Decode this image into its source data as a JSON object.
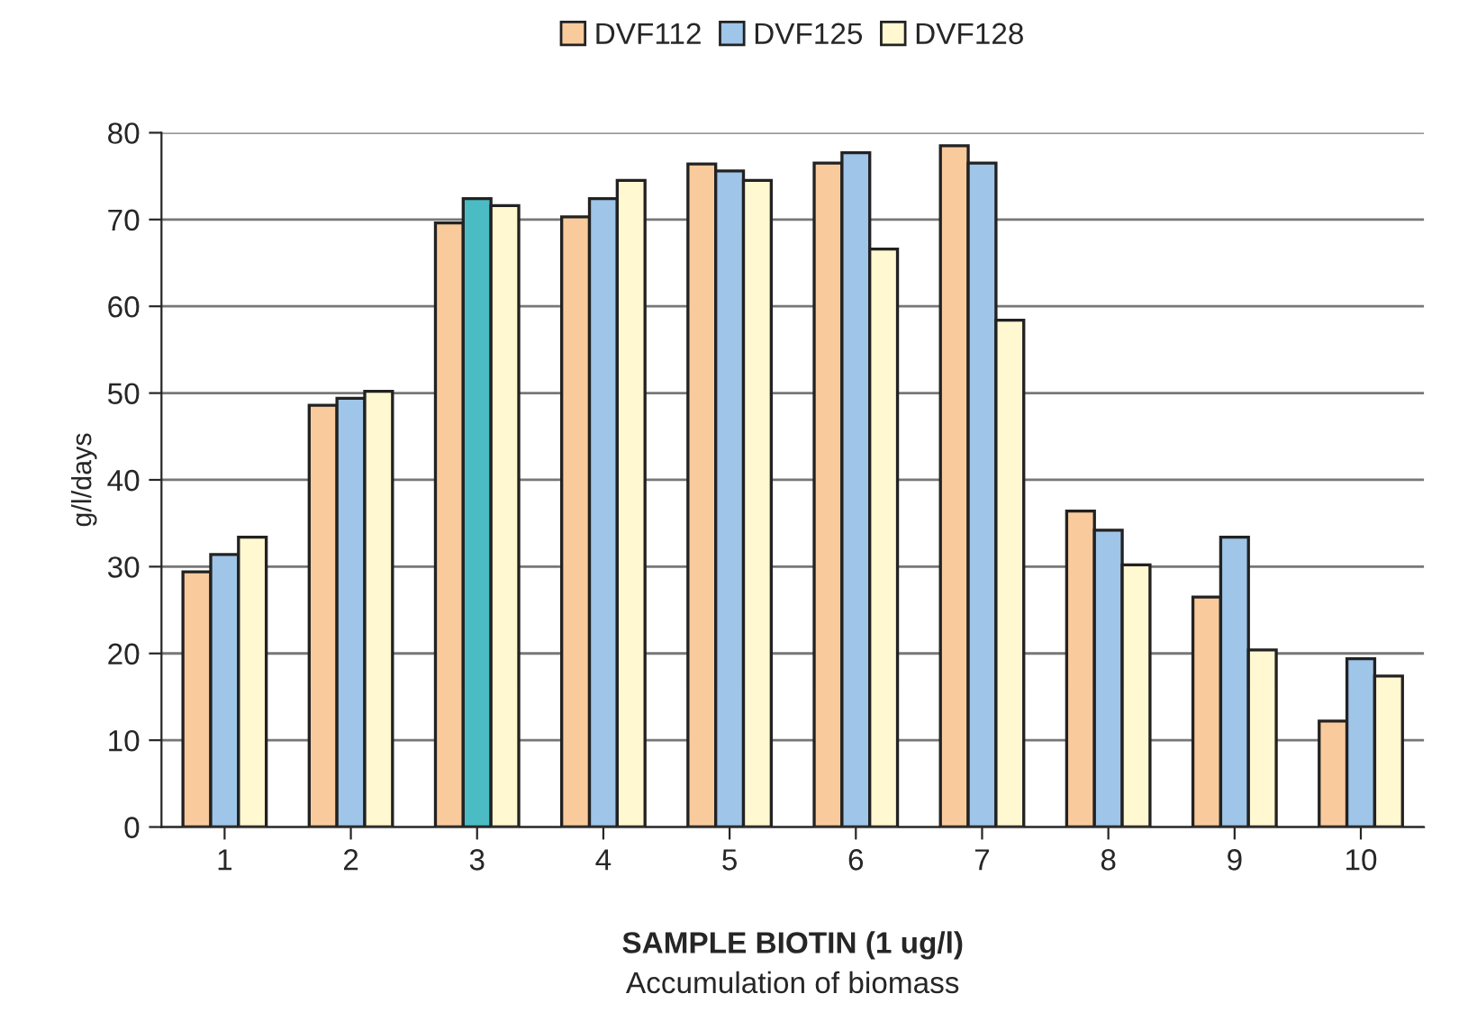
{
  "chart_data": {
    "type": "bar",
    "xlabel": "SAMPLE BIOTIN (1 ug/l)",
    "ylabel": "g/l/days",
    "annotations": [
      "Accumulation of biomass"
    ],
    "categories": [
      "1",
      "2",
      "3",
      "4",
      "5",
      "6",
      "7",
      "8",
      "9",
      "10"
    ],
    "series": [
      {
        "name": "DVF112",
        "color": "#f9cb9c",
        "values": [
          29.4,
          48.6,
          69.6,
          70.3,
          76.4,
          76.5,
          78.5,
          36.4,
          26.5,
          12.2
        ]
      },
      {
        "name": "DVF125",
        "color": "#9fc5e8",
        "colors": [
          "#9fc5e8",
          "#9fc5e8",
          "#4bbcc3",
          "#9fc5e8",
          "#9fc5e8",
          "#9fc5e8",
          "#9fc5e8",
          "#9fc5e8",
          "#9fc5e8",
          "#9fc5e8"
        ],
        "values": [
          31.4,
          49.4,
          72.4,
          72.4,
          75.6,
          77.7,
          76.5,
          34.2,
          33.4,
          19.4
        ]
      },
      {
        "name": "DVF128",
        "color": "#fff8d0",
        "values": [
          33.4,
          50.2,
          71.6,
          74.5,
          74.5,
          66.6,
          58.4,
          30.2,
          20.4,
          17.4
        ]
      }
    ],
    "ylim": [
      0,
      80
    ],
    "yticks": [
      0,
      10,
      20,
      30,
      40,
      50,
      60,
      70,
      80
    ],
    "grid": "y",
    "legend": "top"
  }
}
